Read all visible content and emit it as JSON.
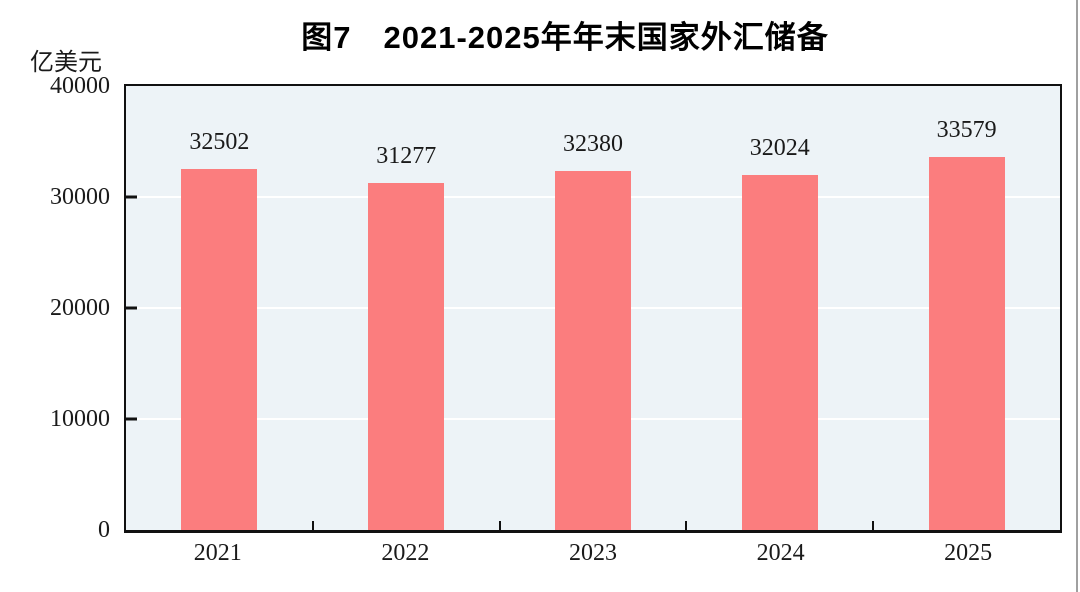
{
  "chart_data": {
    "type": "bar",
    "title": "图7　2021-2025年年末国家外汇储备",
    "ylabel": "亿美元",
    "xlabel": "",
    "categories": [
      "2021",
      "2022",
      "2023",
      "2024",
      "2025"
    ],
    "values": [
      32502,
      31277,
      32380,
      32024,
      33579
    ],
    "data_labels": [
      "32502",
      "31277",
      "32380",
      "32024",
      "33579"
    ],
    "ylim": [
      0,
      40000
    ],
    "ytick_labels": [
      "40000",
      "30000",
      "20000",
      "10000",
      "0"
    ],
    "grid": "horizontal",
    "gridline_color": "#ffffff",
    "legend": "none",
    "bar_color": "#fb7d7e",
    "plot_background": "#edf3f7",
    "axis_color": "#111111"
  }
}
